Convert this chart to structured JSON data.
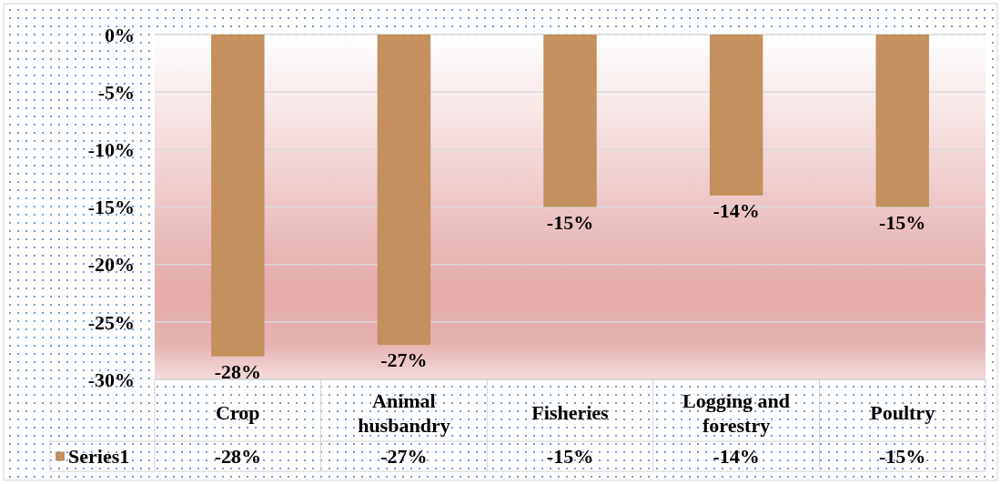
{
  "chart_data": {
    "type": "bar",
    "categories": [
      "Crop",
      "Animal husbandry",
      "Fisheries",
      "Logging and forestry",
      "Poultry"
    ],
    "series": [
      {
        "name": "Series1",
        "color": "#c3905e",
        "values": [
          -28,
          -27,
          -15,
          -14,
          -15
        ],
        "value_labels": [
          "-28%",
          "-27%",
          "-15%",
          "-14%",
          "-15%"
        ]
      }
    ],
    "ylim": [
      -30,
      0
    ],
    "yticks": [
      {
        "value": 0,
        "label": "0%"
      },
      {
        "value": -5,
        "label": "-5%"
      },
      {
        "value": -10,
        "label": "-10%"
      },
      {
        "value": -15,
        "label": "-15%"
      },
      {
        "value": -20,
        "label": "-20%"
      },
      {
        "value": -25,
        "label": "-25%"
      },
      {
        "value": -30,
        "label": "-30%"
      }
    ],
    "grid": "y",
    "legend": "bottom"
  }
}
